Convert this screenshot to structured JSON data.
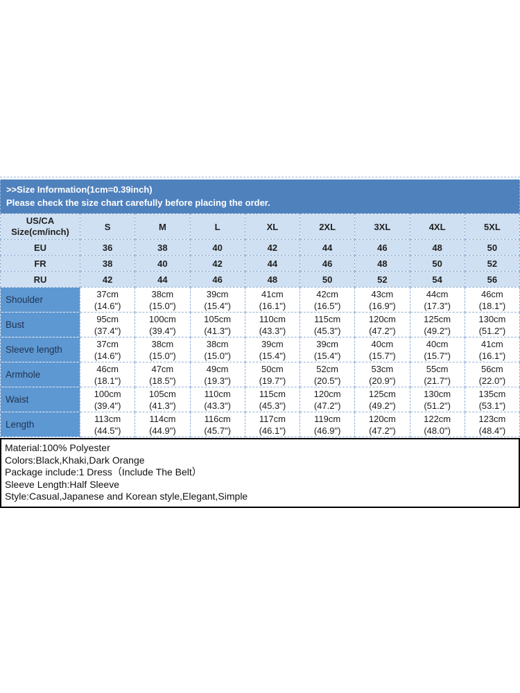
{
  "banner": {
    "line1": ">>Size Information(1cm=0.39inch)",
    "line2": "Please check the size chart carefully before placing the order."
  },
  "table": {
    "corner": {
      "line1": "US/CA",
      "line2": "Size(cm/inch)"
    },
    "sizes": [
      "S",
      "M",
      "L",
      "XL",
      "2XL",
      "3XL",
      "4XL",
      "5XL"
    ],
    "region_rows": [
      {
        "label": "EU",
        "values": [
          "36",
          "38",
          "40",
          "42",
          "44",
          "46",
          "48",
          "50"
        ]
      },
      {
        "label": "FR",
        "values": [
          "38",
          "40",
          "42",
          "44",
          "46",
          "48",
          "50",
          "52"
        ]
      },
      {
        "label": "RU",
        "values": [
          "42",
          "44",
          "46",
          "48",
          "50",
          "52",
          "54",
          "56"
        ]
      }
    ],
    "measurement_rows": [
      {
        "label": "Shoulder",
        "cells": [
          {
            "cm": "37cm",
            "in": "(14.6\")"
          },
          {
            "cm": "38cm",
            "in": "(15.0\")"
          },
          {
            "cm": "39cm",
            "in": "(15.4\")"
          },
          {
            "cm": "41cm",
            "in": "(16.1\")"
          },
          {
            "cm": "42cm",
            "in": "(16.5\")"
          },
          {
            "cm": "43cm",
            "in": "(16.9\")"
          },
          {
            "cm": "44cm",
            "in": "(17.3\")"
          },
          {
            "cm": "46cm",
            "in": "(18.1\")"
          }
        ]
      },
      {
        "label": "Bust",
        "cells": [
          {
            "cm": "95cm",
            "in": "(37.4\")"
          },
          {
            "cm": "100cm",
            "in": "(39.4\")"
          },
          {
            "cm": "105cm",
            "in": "(41.3\")"
          },
          {
            "cm": "110cm",
            "in": "(43.3\")"
          },
          {
            "cm": "115cm",
            "in": "(45.3\")"
          },
          {
            "cm": "120cm",
            "in": "(47.2\")"
          },
          {
            "cm": "125cm",
            "in": "(49.2\")"
          },
          {
            "cm": "130cm",
            "in": "(51.2\")"
          }
        ]
      },
      {
        "label": "Sleeve length",
        "cells": [
          {
            "cm": "37cm",
            "in": "(14.6\")"
          },
          {
            "cm": "38cm",
            "in": "(15.0\")"
          },
          {
            "cm": "38cm",
            "in": "(15.0\")"
          },
          {
            "cm": "39cm",
            "in": "(15.4\")"
          },
          {
            "cm": "39cm",
            "in": "(15.4\")"
          },
          {
            "cm": "40cm",
            "in": "(15.7\")"
          },
          {
            "cm": "40cm",
            "in": "(15.7\")"
          },
          {
            "cm": "41cm",
            "in": "(16.1\")"
          }
        ]
      },
      {
        "label": "Armhole",
        "cells": [
          {
            "cm": "46cm",
            "in": "(18.1\")"
          },
          {
            "cm": "47cm",
            "in": "(18.5\")"
          },
          {
            "cm": "49cm",
            "in": "(19.3\")"
          },
          {
            "cm": "50cm",
            "in": "(19.7\")"
          },
          {
            "cm": "52cm",
            "in": "(20.5\")"
          },
          {
            "cm": "53cm",
            "in": "(20.9\")"
          },
          {
            "cm": "55cm",
            "in": "(21.7\")"
          },
          {
            "cm": "56cm",
            "in": "(22.0\")"
          }
        ]
      },
      {
        "label": "Waist",
        "cells": [
          {
            "cm": "100cm",
            "in": "(39.4\")"
          },
          {
            "cm": "105cm",
            "in": "(41.3\")"
          },
          {
            "cm": "110cm",
            "in": "(43.3\")"
          },
          {
            "cm": "115cm",
            "in": "(45.3\")"
          },
          {
            "cm": "120cm",
            "in": "(47.2\")"
          },
          {
            "cm": "125cm",
            "in": "(49.2\")"
          },
          {
            "cm": "130cm",
            "in": "(51.2\")"
          },
          {
            "cm": "135cm",
            "in": "(53.1\")"
          }
        ]
      },
      {
        "label": "Length",
        "cells": [
          {
            "cm": "113cm",
            "in": "(44.5\")"
          },
          {
            "cm": "114cm",
            "in": "(44.9\")"
          },
          {
            "cm": "116cm",
            "in": "(45.7\")"
          },
          {
            "cm": "117cm",
            "in": "(46.1\")"
          },
          {
            "cm": "119cm",
            "in": "(46.9\")"
          },
          {
            "cm": "120cm",
            "in": "(47.2\")"
          },
          {
            "cm": "122cm",
            "in": "(48.0\")"
          },
          {
            "cm": "123cm",
            "in": "(48.4\")"
          }
        ]
      }
    ]
  },
  "details": {
    "lines": [
      "Material:100% Polyester",
      "Colors:Black,Khaki,Dark Orange",
      "Package include:1 Dress（Include The Belt）",
      "Sleeve Length:Half Sleeve",
      "Style:Casual,Japanese and Korean style,Elegant,Simple"
    ]
  },
  "colors": {
    "banner_bg": "#4f81bd",
    "header_row_bg": "#cfe0f2",
    "label_col_bg": "#5e98d2",
    "grid_border": "#93b1d7",
    "details_border": "#000000"
  }
}
